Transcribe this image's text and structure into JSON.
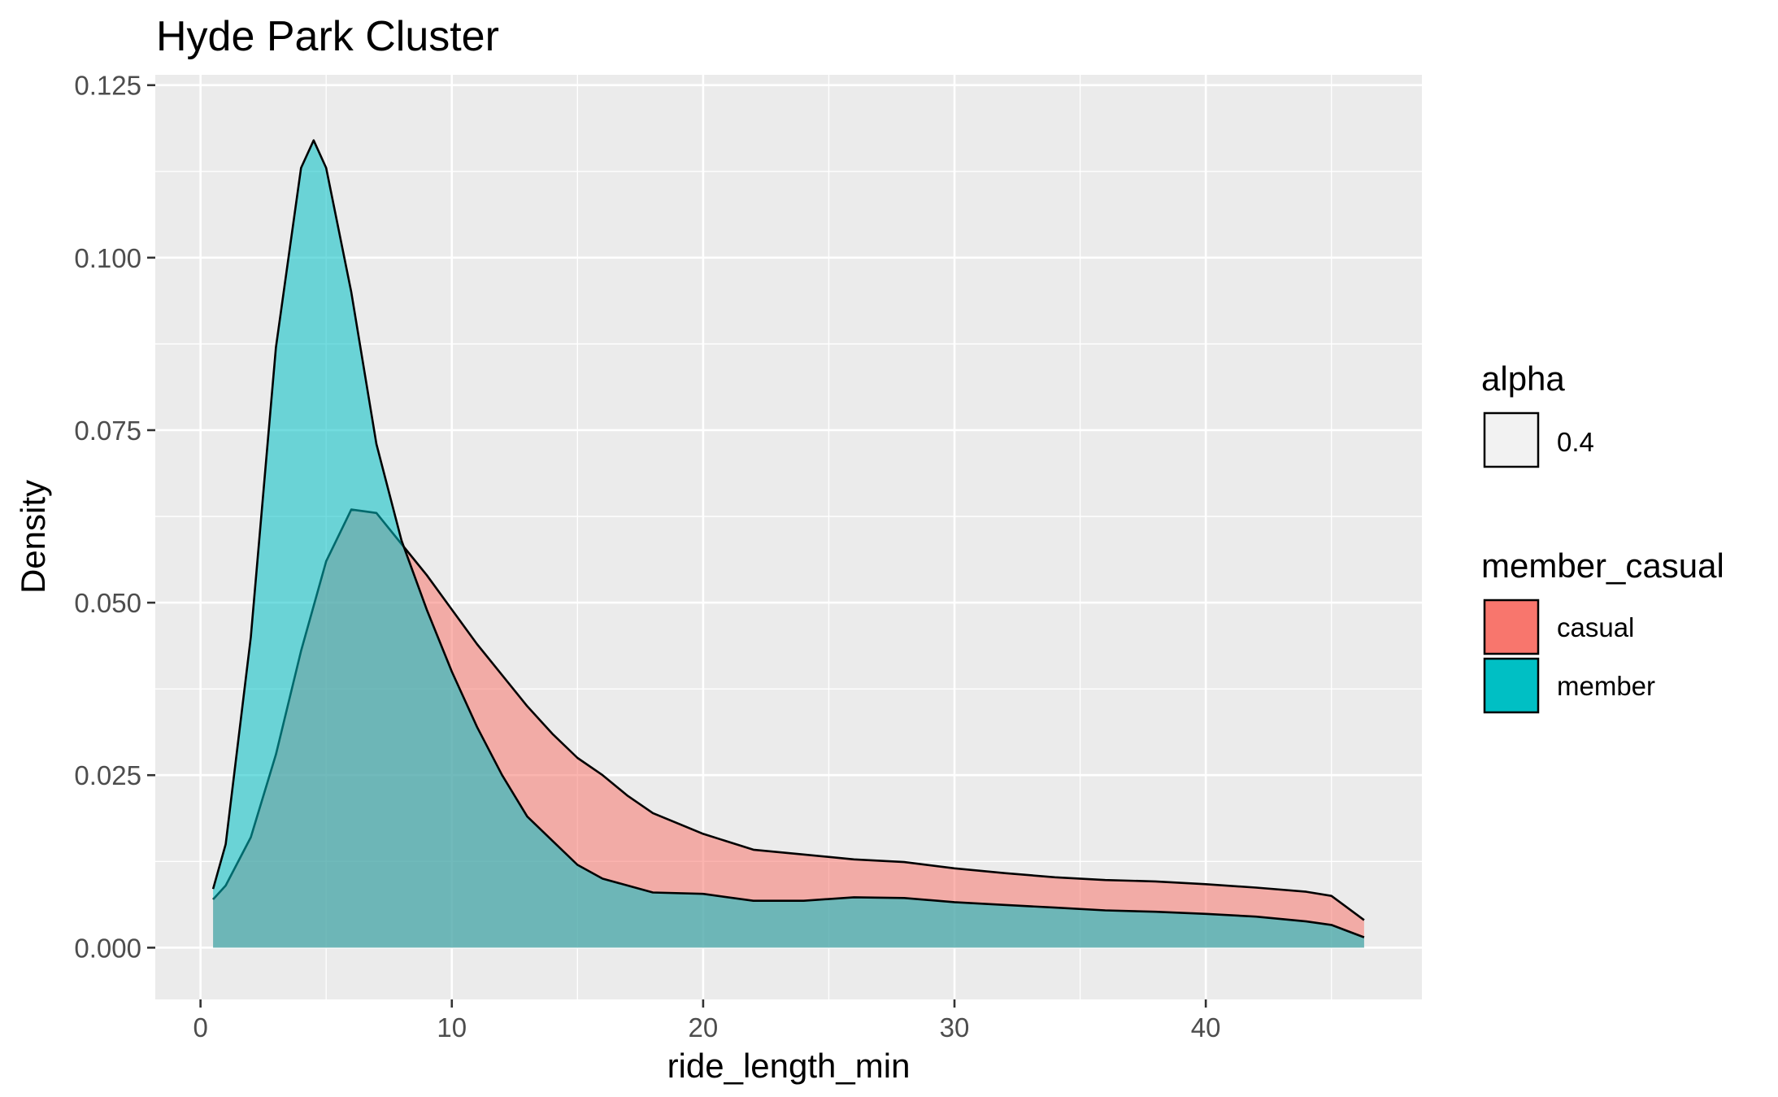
{
  "chart_data": {
    "type": "area",
    "title": "Hyde Park Cluster",
    "xlabel": "ride_length_min",
    "ylabel": "Density",
    "xlim": [
      -1.8,
      48.6
    ],
    "ylim": [
      -0.0075,
      0.1265
    ],
    "x_ticks": [
      0,
      10,
      20,
      30,
      40
    ],
    "x_tick_labels": [
      "0",
      "10",
      "20",
      "30",
      "40"
    ],
    "y_ticks": [
      0,
      0.025,
      0.05,
      0.075,
      0.1,
      0.125
    ],
    "y_tick_labels": [
      "0.000",
      "0.025",
      "0.050",
      "0.075",
      "0.100",
      "0.125"
    ],
    "grid": true,
    "legend": {
      "position": "right",
      "alpha_title": "alpha",
      "alpha_label": "0.4",
      "fill_title": "member_casual"
    },
    "series": [
      {
        "name": "casual",
        "color": "#F8766D",
        "x": [
          0.5,
          1,
          2,
          3,
          4,
          5,
          6,
          7,
          8,
          9,
          10,
          11,
          12,
          13,
          14,
          15,
          16,
          17,
          18,
          20,
          22,
          24,
          26,
          28,
          30,
          32,
          34,
          36,
          38,
          40,
          42,
          44,
          45,
          46.3
        ],
        "values": [
          0.007,
          0.009,
          0.016,
          0.028,
          0.043,
          0.056,
          0.0635,
          0.063,
          0.0585,
          0.054,
          0.049,
          0.044,
          0.0395,
          0.035,
          0.031,
          0.0275,
          0.025,
          0.022,
          0.0195,
          0.0165,
          0.0142,
          0.0135,
          0.0128,
          0.0124,
          0.0115,
          0.0108,
          0.0102,
          0.0098,
          0.0096,
          0.0092,
          0.0087,
          0.0081,
          0.0075,
          0.004
        ]
      },
      {
        "name": "member",
        "color": "#00BFC4",
        "x": [
          0.5,
          1,
          2,
          3,
          4,
          4.5,
          5,
          6,
          7,
          8,
          9,
          10,
          11,
          12,
          13,
          14,
          15,
          16,
          17,
          18,
          20,
          22,
          24,
          26,
          28,
          30,
          32,
          34,
          36,
          38,
          40,
          42,
          44,
          45,
          46.3
        ],
        "values": [
          0.0085,
          0.015,
          0.045,
          0.087,
          0.113,
          0.117,
          0.113,
          0.095,
          0.073,
          0.059,
          0.049,
          0.04,
          0.032,
          0.025,
          0.019,
          0.0155,
          0.012,
          0.01,
          0.009,
          0.008,
          0.0078,
          0.0068,
          0.0068,
          0.0073,
          0.0072,
          0.0066,
          0.0062,
          0.0058,
          0.0054,
          0.0052,
          0.0049,
          0.0045,
          0.0038,
          0.0033,
          0.0015
        ]
      }
    ]
  }
}
